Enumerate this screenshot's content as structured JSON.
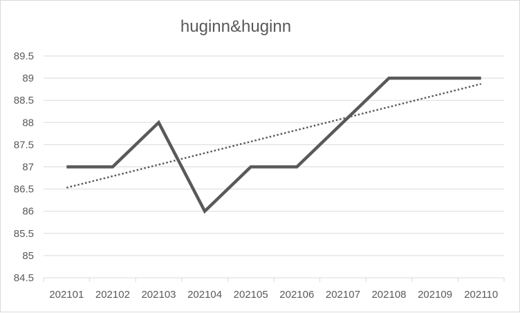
{
  "chart_data": {
    "type": "line",
    "title": "huginn&huginn",
    "xlabel": "",
    "ylabel": "",
    "categories": [
      "202101",
      "202102",
      "202103",
      "202104",
      "202105",
      "202106",
      "202107",
      "202108",
      "202109",
      "202110"
    ],
    "series": [
      {
        "values": [
          87,
          87,
          88,
          86,
          87,
          87,
          88,
          89,
          89,
          89
        ]
      }
    ],
    "trendline": {
      "type": "linear",
      "style": "dotted",
      "start": 86.53,
      "end": 88.87
    },
    "ylim": [
      84.5,
      89.5
    ],
    "yticks": [
      "84.5",
      "85",
      "85.5",
      "86",
      "86.5",
      "87",
      "87.5",
      "88",
      "88.5",
      "89",
      "89.5"
    ],
    "grid": true,
    "legend": "none",
    "colors": {
      "series": "#595959",
      "trend": "#595959",
      "grid": "#d9d9d9",
      "text": "#595959"
    }
  }
}
